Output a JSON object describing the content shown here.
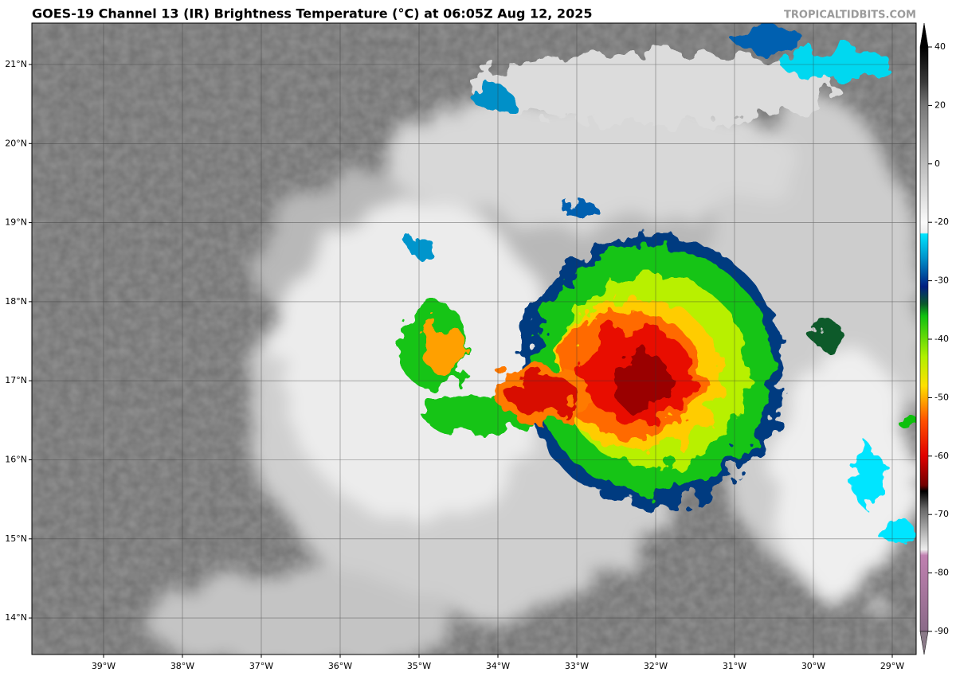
{
  "header": {
    "title": "GOES-19 Channel 13 (IR) Brightness Temperature (°C) at 06:05Z Aug 12, 2025",
    "credit": "TROPICALTIDBITS.COM"
  },
  "map": {
    "lat_labels": [
      "21°N",
      "20°N",
      "19°N",
      "18°N",
      "17°N",
      "16°N",
      "15°N",
      "14°N"
    ],
    "lon_labels": [
      "39°W",
      "38°W",
      "37°W",
      "36°W",
      "35°W",
      "34°W",
      "33°W",
      "32°W",
      "31°W",
      "30°W",
      "29°W"
    ]
  },
  "colorbar": {
    "ticks": [
      40,
      20,
      0,
      -20,
      -30,
      -40,
      -50,
      -60,
      -70,
      -80,
      -90
    ]
  }
}
